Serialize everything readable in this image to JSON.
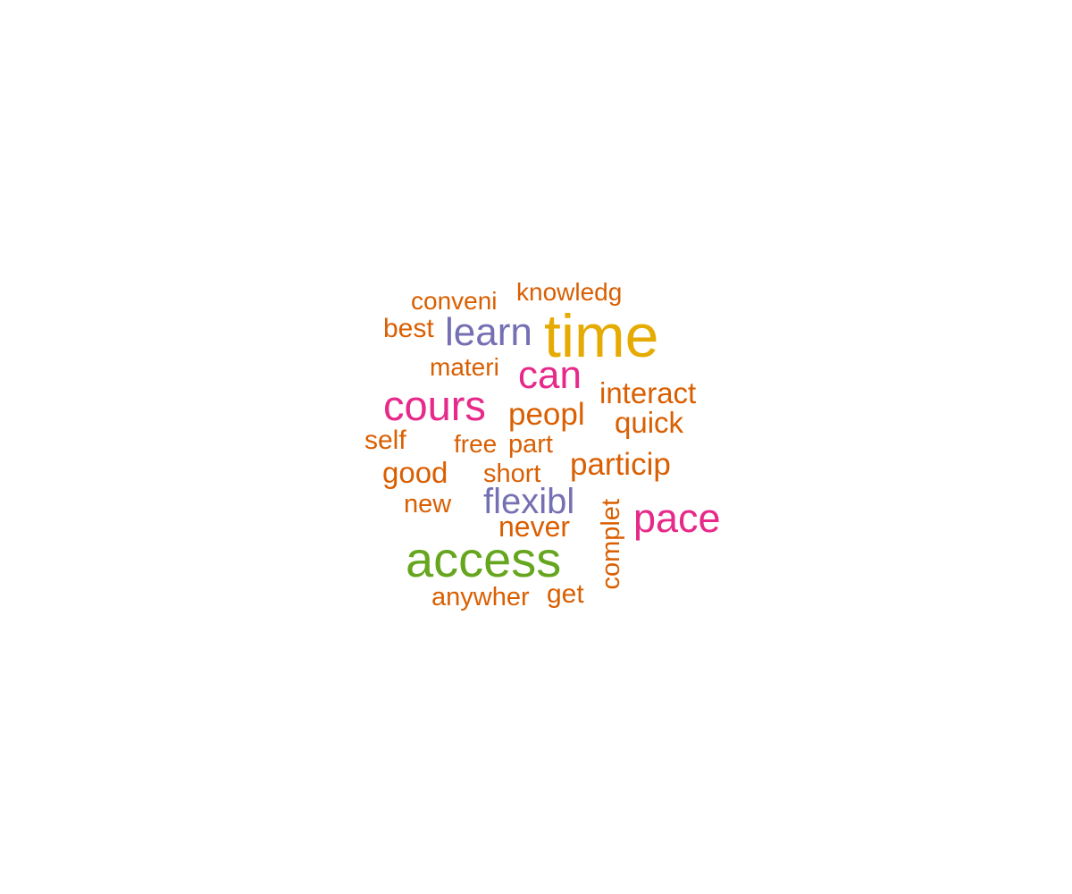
{
  "colors": {
    "orange": "#D95F02",
    "gold": "#E6AB02",
    "purple": "#7570B3",
    "magenta": "#E7298A",
    "green": "#66A61E"
  },
  "words": [
    {
      "text": "time",
      "color": "gold",
      "weight": 5
    },
    {
      "text": "access",
      "color": "green",
      "weight": 4
    },
    {
      "text": "cours",
      "color": "magenta",
      "weight": 3
    },
    {
      "text": "pace",
      "color": "magenta",
      "weight": 3
    },
    {
      "text": "can",
      "color": "magenta",
      "weight": 3
    },
    {
      "text": "learn",
      "color": "purple",
      "weight": 2
    },
    {
      "text": "flexibl",
      "color": "purple",
      "weight": 2
    },
    {
      "text": "peopl",
      "color": "orange",
      "weight": 1
    },
    {
      "text": "particip",
      "color": "orange",
      "weight": 1
    },
    {
      "text": "interact",
      "color": "orange",
      "weight": 1
    },
    {
      "text": "quick",
      "color": "orange",
      "weight": 1
    },
    {
      "text": "conveni",
      "color": "orange",
      "weight": 1
    },
    {
      "text": "knowledg",
      "color": "orange",
      "weight": 1
    },
    {
      "text": "best",
      "color": "orange",
      "weight": 1
    },
    {
      "text": "materi",
      "color": "orange",
      "weight": 1
    },
    {
      "text": "self",
      "color": "orange",
      "weight": 1
    },
    {
      "text": "free",
      "color": "orange",
      "weight": 1
    },
    {
      "text": "part",
      "color": "orange",
      "weight": 1
    },
    {
      "text": "good",
      "color": "orange",
      "weight": 1
    },
    {
      "text": "short",
      "color": "orange",
      "weight": 1
    },
    {
      "text": "new",
      "color": "orange",
      "weight": 1
    },
    {
      "text": "never",
      "color": "orange",
      "weight": 1
    },
    {
      "text": "complet",
      "color": "orange",
      "weight": 1
    },
    {
      "text": "anywher",
      "color": "orange",
      "weight": 1
    },
    {
      "text": "get",
      "color": "orange",
      "weight": 1
    }
  ]
}
